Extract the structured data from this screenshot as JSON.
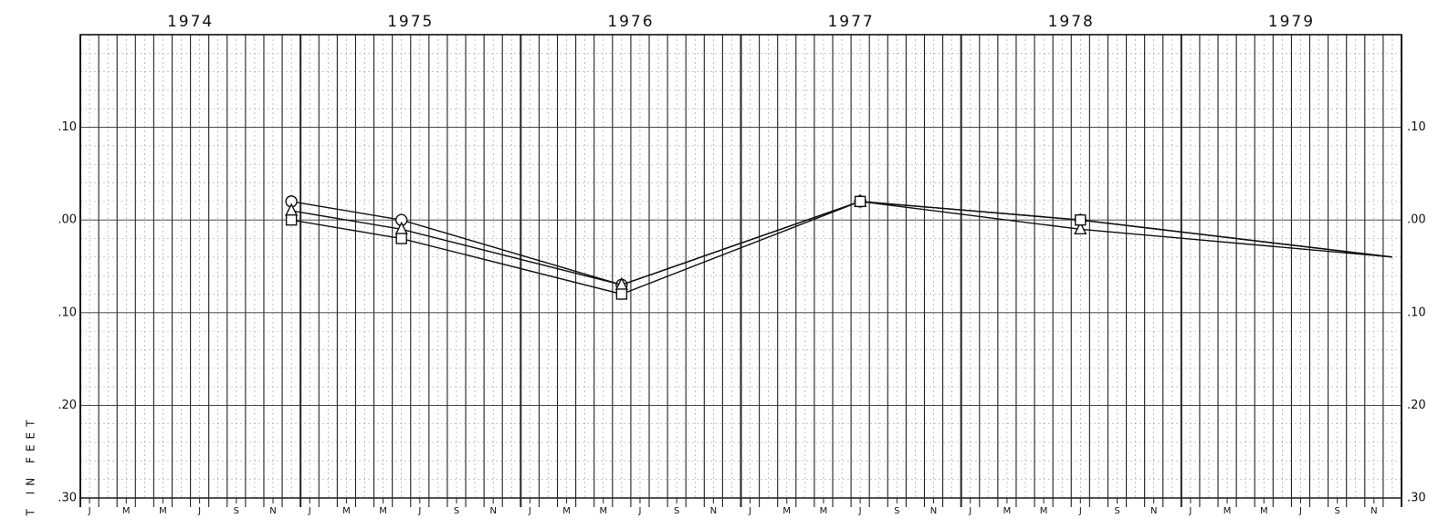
{
  "chart_data": {
    "type": "line",
    "y_label": "T IN FEET",
    "year_labels": [
      {
        "value": "1974-07",
        "label": "1974"
      },
      {
        "value": "1975-07",
        "label": "1975"
      },
      {
        "value": "1976-07",
        "label": "1976"
      },
      {
        "value": "1977-07",
        "label": "1977"
      },
      {
        "value": "1978-07",
        "label": "1978"
      },
      {
        "value": "1979-07",
        "label": "1979"
      }
    ],
    "xlim": [
      "1974-01",
      "1979-12"
    ],
    "xticks": [
      {
        "value": "1974-01",
        "label": "J"
      },
      {
        "value": "1974-03",
        "label": "M"
      },
      {
        "value": "1974-05",
        "label": "M"
      },
      {
        "value": "1974-07",
        "label": "J"
      },
      {
        "value": "1974-09",
        "label": "S"
      },
      {
        "value": "1974-11",
        "label": "N"
      },
      {
        "value": "1975-01",
        "label": "J"
      },
      {
        "value": "1975-03",
        "label": "M"
      },
      {
        "value": "1975-05",
        "label": "M"
      },
      {
        "value": "1975-07",
        "label": "J"
      },
      {
        "value": "1975-09",
        "label": "S"
      },
      {
        "value": "1975-11",
        "label": "N"
      },
      {
        "value": "1976-01",
        "label": "J"
      },
      {
        "value": "1976-03",
        "label": "M"
      },
      {
        "value": "1976-05",
        "label": "M"
      },
      {
        "value": "1976-07",
        "label": "J"
      },
      {
        "value": "1976-09",
        "label": "S"
      },
      {
        "value": "1976-11",
        "label": "N"
      },
      {
        "value": "1977-01",
        "label": "J"
      },
      {
        "value": "1977-03",
        "label": "M"
      },
      {
        "value": "1977-05",
        "label": "M"
      },
      {
        "value": "1977-07",
        "label": "J"
      },
      {
        "value": "1977-09",
        "label": "S"
      },
      {
        "value": "1977-11",
        "label": "N"
      },
      {
        "value": "1978-01",
        "label": "J"
      },
      {
        "value": "1978-03",
        "label": "M"
      },
      {
        "value": "1978-05",
        "label": "M"
      },
      {
        "value": "1978-07",
        "label": "J"
      },
      {
        "value": "1978-09",
        "label": "S"
      },
      {
        "value": "1978-11",
        "label": "N"
      },
      {
        "value": "1979-01",
        "label": "J"
      },
      {
        "value": "1979-03",
        "label": "M"
      },
      {
        "value": "1979-05",
        "label": "M"
      },
      {
        "value": "1979-07",
        "label": "J"
      },
      {
        "value": "1979-09",
        "label": "S"
      },
      {
        "value": "1979-11",
        "label": "N"
      }
    ],
    "ylim": [
      -0.3,
      0.2
    ],
    "yticks": [
      {
        "value": 0.1,
        "label": ".10"
      },
      {
        "value": 0.0,
        "label": ".00"
      },
      {
        "value": -0.1,
        "label": ".10"
      },
      {
        "value": -0.2,
        "label": ".20"
      },
      {
        "value": -0.3,
        "label": ".30"
      }
    ],
    "grid": true,
    "x": [
      "1974-12",
      "1975-06",
      "1976-06",
      "1977-07",
      "1978-07",
      "1979-12"
    ],
    "series": [
      {
        "marker": "circle",
        "color": "#111111",
        "values": [
          0.02,
          0.0,
          -0.07,
          0.02,
          0.0,
          -0.04
        ]
      },
      {
        "marker": "triangle",
        "color": "#111111",
        "values": [
          0.01,
          -0.01,
          -0.07,
          0.02,
          -0.01,
          -0.04
        ]
      },
      {
        "marker": "square",
        "color": "#111111",
        "values": [
          0.0,
          -0.02,
          -0.08,
          0.02,
          0.0,
          -0.04
        ]
      }
    ]
  }
}
